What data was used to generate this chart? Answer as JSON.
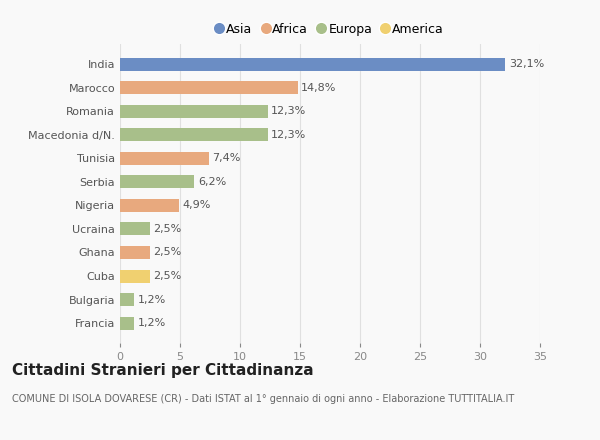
{
  "categories": [
    "India",
    "Marocco",
    "Romania",
    "Macedonia d/N.",
    "Tunisia",
    "Serbia",
    "Nigeria",
    "Ucraina",
    "Ghana",
    "Cuba",
    "Bulgaria",
    "Francia"
  ],
  "values": [
    32.1,
    14.8,
    12.3,
    12.3,
    7.4,
    6.2,
    4.9,
    2.5,
    2.5,
    2.5,
    1.2,
    1.2
  ],
  "labels": [
    "32,1%",
    "14,8%",
    "12,3%",
    "12,3%",
    "7,4%",
    "6,2%",
    "4,9%",
    "2,5%",
    "2,5%",
    "2,5%",
    "1,2%",
    "1,2%"
  ],
  "colors": [
    "#6b8dc4",
    "#e8a97e",
    "#a8bf8a",
    "#a8bf8a",
    "#e8a97e",
    "#a8bf8a",
    "#e8a97e",
    "#a8bf8a",
    "#e8a97e",
    "#f0d070",
    "#a8bf8a",
    "#a8bf8a"
  ],
  "legend_labels": [
    "Asia",
    "Africa",
    "Europa",
    "America"
  ],
  "legend_colors": [
    "#6b8dc4",
    "#e8a97e",
    "#a8bf8a",
    "#f0d070"
  ],
  "xlim": [
    0,
    35
  ],
  "xticks": [
    0,
    5,
    10,
    15,
    20,
    25,
    30,
    35
  ],
  "title": "Cittadini Stranieri per Cittadinanza",
  "subtitle": "COMUNE DI ISOLA DOVARESE (CR) - Dati ISTAT al 1° gennaio di ogni anno - Elaborazione TUTTITALIA.IT",
  "bg_color": "#f9f9f9",
  "grid_color": "#e0e0e0",
  "title_fontsize": 11,
  "subtitle_fontsize": 7,
  "tick_fontsize": 8,
  "label_fontsize": 8
}
